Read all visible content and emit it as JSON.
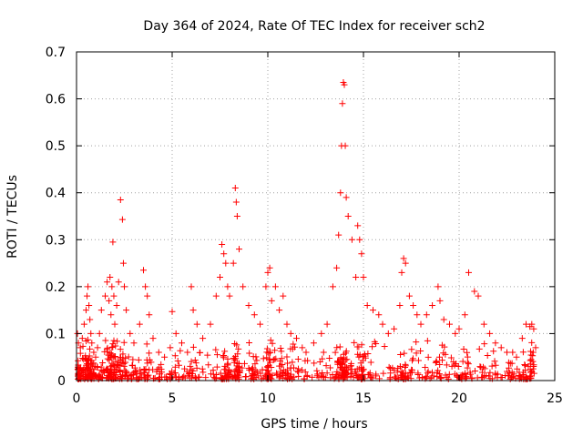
{
  "chart_data": {
    "type": "scatter",
    "title": "Day 364 of 2024, Rate Of TEC Index for receiver sch2",
    "xlabel": "GPS time / hours",
    "ylabel": "ROTI / TECUs",
    "xlim": [
      0,
      25
    ],
    "ylim": [
      0,
      0.7
    ],
    "xticks": [
      0,
      5,
      10,
      15,
      20,
      25
    ],
    "yticks": [
      0,
      0.1,
      0.2,
      0.3,
      0.4,
      0.5,
      0.6,
      0.7
    ],
    "grid": true,
    "marker": "+",
    "color": "#ff0000",
    "series": [
      {
        "name": "ROTI",
        "x": [
          0.05,
          0.1,
          0.2,
          0.3,
          0.4,
          0.5,
          0.55,
          0.6,
          0.65,
          0.7,
          0.75,
          0.8,
          0.9,
          1.0,
          1.1,
          1.2,
          1.3,
          1.5,
          1.6,
          1.7,
          1.75,
          1.8,
          1.85,
          1.9,
          1.95,
          2.0,
          2.1,
          2.2,
          2.3,
          2.4,
          2.45,
          2.5,
          2.6,
          2.8,
          3.0,
          3.3,
          3.5,
          3.6,
          3.7,
          3.8,
          4.0,
          4.3,
          4.6,
          4.9,
          5.0,
          5.2,
          5.5,
          5.8,
          6.0,
          6.1,
          6.3,
          6.6,
          7.0,
          7.3,
          7.5,
          7.6,
          7.7,
          7.8,
          7.9,
          8.0,
          8.2,
          8.3,
          8.35,
          8.4,
          8.5,
          8.7,
          9.0,
          9.3,
          9.6,
          9.9,
          10.0,
          10.1,
          10.2,
          10.4,
          10.6,
          10.8,
          11.0,
          11.2,
          11.5,
          11.8,
          12.0,
          12.4,
          12.8,
          13.1,
          13.4,
          13.6,
          13.7,
          13.8,
          13.85,
          13.9,
          13.95,
          14.0,
          14.05,
          14.1,
          14.2,
          14.4,
          14.6,
          14.7,
          14.8,
          14.9,
          15.0,
          15.2,
          15.5,
          15.8,
          16.0,
          16.3,
          16.6,
          16.9,
          17.0,
          17.1,
          17.2,
          17.4,
          17.6,
          17.8,
          18.0,
          18.3,
          18.6,
          18.9,
          19.0,
          19.2,
          19.5,
          19.8,
          20.0,
          20.3,
          20.5,
          20.8,
          21.0,
          21.3,
          21.6,
          21.9,
          22.2,
          22.5,
          22.8,
          23.0,
          23.3,
          23.5,
          23.7,
          23.8,
          23.9,
          24.0
        ],
        "y": [
          0.1,
          0.08,
          0.07,
          0.09,
          0.12,
          0.15,
          0.18,
          0.2,
          0.16,
          0.13,
          0.1,
          0.08,
          0.06,
          0.05,
          0.07,
          0.1,
          0.15,
          0.18,
          0.21,
          0.17,
          0.22,
          0.14,
          0.2,
          0.295,
          0.18,
          0.12,
          0.16,
          0.21,
          0.385,
          0.343,
          0.25,
          0.2,
          0.15,
          0.1,
          0.08,
          0.12,
          0.235,
          0.2,
          0.18,
          0.14,
          0.09,
          0.06,
          0.05,
          0.07,
          0.147,
          0.1,
          0.08,
          0.06,
          0.2,
          0.15,
          0.12,
          0.09,
          0.12,
          0.18,
          0.22,
          0.29,
          0.27,
          0.25,
          0.2,
          0.18,
          0.25,
          0.41,
          0.38,
          0.35,
          0.28,
          0.2,
          0.16,
          0.14,
          0.12,
          0.2,
          0.23,
          0.24,
          0.17,
          0.2,
          0.15,
          0.18,
          0.12,
          0.1,
          0.09,
          0.07,
          0.06,
          0.08,
          0.1,
          0.12,
          0.2,
          0.24,
          0.31,
          0.4,
          0.5,
          0.59,
          0.635,
          0.63,
          0.5,
          0.39,
          0.35,
          0.3,
          0.22,
          0.33,
          0.3,
          0.27,
          0.22,
          0.16,
          0.15,
          0.14,
          0.12,
          0.1,
          0.11,
          0.16,
          0.23,
          0.26,
          0.25,
          0.18,
          0.16,
          0.14,
          0.12,
          0.14,
          0.16,
          0.2,
          0.17,
          0.13,
          0.12,
          0.1,
          0.11,
          0.14,
          0.23,
          0.19,
          0.18,
          0.12,
          0.1,
          0.08,
          0.07,
          0.06,
          0.06,
          0.05,
          0.09,
          0.12,
          0.115,
          0.12,
          0.11,
          0.07
        ]
      }
    ]
  }
}
